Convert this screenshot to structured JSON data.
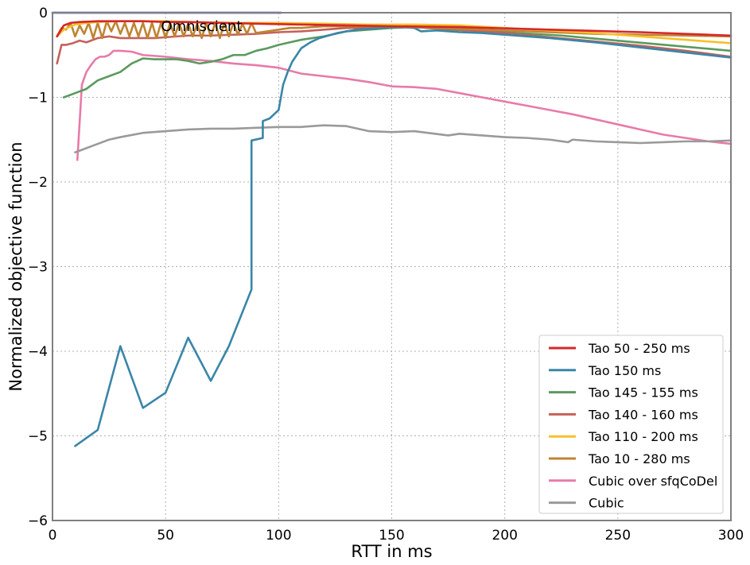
{
  "chart_data": {
    "type": "line",
    "title": "",
    "xlabel": "RTT in ms",
    "ylabel": "Normalized objective function",
    "xlim": [
      0,
      300
    ],
    "ylim": [
      -6,
      0
    ],
    "xticks": [
      0,
      50,
      100,
      150,
      200,
      250,
      300
    ],
    "yticks": [
      0,
      -1,
      -2,
      -3,
      -4,
      -5,
      -6
    ],
    "xtick_labels": [
      "0",
      "50",
      "100",
      "150",
      "200",
      "250",
      "300"
    ],
    "ytick_labels": [
      "0",
      "−1",
      "−2",
      "−3",
      "−4",
      "−5",
      "−6"
    ],
    "grid": true,
    "legend_position": "lower-right",
    "annotations": [
      {
        "text": "Omniscient",
        "x": 48,
        "y": -0.16
      }
    ],
    "reference_line": {
      "name": "Omniscient",
      "color": "#2020c8",
      "x": [
        0,
        101
      ],
      "y": [
        0,
        0
      ]
    },
    "series": [
      {
        "name": "Tao 50 - 250 ms",
        "color": "#d62728",
        "x": [
          2,
          5,
          8,
          12,
          20,
          30,
          40,
          50,
          60,
          75,
          90,
          110,
          130,
          150,
          180,
          220,
          260,
          300
        ],
        "y": [
          -0.28,
          -0.15,
          -0.12,
          -0.11,
          -0.1,
          -0.1,
          -0.1,
          -0.11,
          -0.11,
          -0.12,
          -0.13,
          -0.14,
          -0.15,
          -0.16,
          -0.17,
          -0.2,
          -0.23,
          -0.27
        ]
      },
      {
        "name": "Tao 150 ms",
        "color": "#3a86a8",
        "x": [
          10,
          20,
          30,
          40,
          50,
          60,
          70,
          78,
          88,
          88,
          93,
          93,
          96,
          100,
          101,
          102,
          104,
          106,
          108,
          110,
          114,
          118,
          122,
          126,
          130,
          135,
          140,
          145,
          150,
          155,
          160,
          163,
          170,
          180,
          190,
          200,
          220,
          240,
          260,
          280,
          300
        ],
        "y": [
          -5.12,
          -4.93,
          -3.94,
          -4.67,
          -4.49,
          -3.84,
          -4.35,
          -3.94,
          -3.27,
          -1.51,
          -1.48,
          -1.28,
          -1.25,
          -1.15,
          -1.0,
          -0.85,
          -0.7,
          -0.58,
          -0.5,
          -0.42,
          -0.35,
          -0.3,
          -0.27,
          -0.24,
          -0.22,
          -0.2,
          -0.19,
          -0.18,
          -0.17,
          -0.17,
          -0.18,
          -0.22,
          -0.21,
          -0.23,
          -0.24,
          -0.26,
          -0.3,
          -0.35,
          -0.41,
          -0.47,
          -0.53
        ]
      },
      {
        "name": "Tao 145 - 155 ms",
        "color": "#5a9a5e",
        "x": [
          5,
          10,
          15,
          20,
          25,
          30,
          35,
          40,
          45,
          50,
          55,
          60,
          65,
          70,
          75,
          80,
          85,
          90,
          95,
          100,
          105,
          110,
          115,
          120,
          125,
          130,
          140,
          150,
          160,
          175,
          200,
          225,
          250,
          275,
          300
        ],
        "y": [
          -1.0,
          -0.95,
          -0.9,
          -0.8,
          -0.75,
          -0.7,
          -0.6,
          -0.54,
          -0.55,
          -0.55,
          -0.55,
          -0.57,
          -0.6,
          -0.58,
          -0.55,
          -0.5,
          -0.5,
          -0.45,
          -0.42,
          -0.38,
          -0.35,
          -0.32,
          -0.3,
          -0.28,
          -0.25,
          -0.22,
          -0.2,
          -0.18,
          -0.17,
          -0.2,
          -0.23,
          -0.27,
          -0.33,
          -0.39,
          -0.45
        ]
      },
      {
        "name": "Tao 140 - 160 ms",
        "color": "#c4615a",
        "x": [
          2,
          4,
          6,
          9,
          12,
          15,
          20,
          25,
          30,
          35,
          40,
          45,
          50,
          60,
          70,
          80,
          90,
          100,
          110,
          120,
          130,
          140,
          150,
          160,
          180,
          200,
          220,
          240,
          260,
          280,
          300
        ],
        "y": [
          -0.6,
          -0.38,
          -0.38,
          -0.36,
          -0.33,
          -0.35,
          -0.3,
          -0.28,
          -0.3,
          -0.3,
          -0.3,
          -0.3,
          -0.29,
          -0.27,
          -0.27,
          -0.26,
          -0.25,
          -0.23,
          -0.22,
          -0.2,
          -0.18,
          -0.18,
          -0.17,
          -0.17,
          -0.2,
          -0.24,
          -0.29,
          -0.34,
          -0.39,
          -0.45,
          -0.52
        ]
      },
      {
        "name": "Tao 110 - 200 ms",
        "color": "#f7c02a",
        "x": [
          2,
          5,
          10,
          15,
          20,
          30,
          40,
          50,
          60,
          80,
          100,
          120,
          140,
          160,
          180,
          200,
          220,
          240,
          260,
          280,
          300
        ],
        "y": [
          -0.28,
          -0.2,
          -0.14,
          -0.12,
          -0.11,
          -0.1,
          -0.1,
          -0.1,
          -0.11,
          -0.12,
          -0.12,
          -0.13,
          -0.14,
          -0.14,
          -0.15,
          -0.18,
          -0.21,
          -0.24,
          -0.28,
          -0.32,
          -0.36
        ]
      },
      {
        "name": "Tao 10 - 280 ms",
        "color": "#bf8432",
        "x": [
          2,
          4,
          6,
          8,
          10,
          12,
          14,
          16,
          18,
          20,
          22,
          24,
          26,
          28,
          30,
          32,
          34,
          36,
          38,
          40,
          42,
          44,
          46,
          48,
          50,
          52,
          54,
          56,
          58,
          60,
          62,
          64,
          66,
          68,
          70,
          72,
          74,
          76,
          78,
          80,
          82,
          84,
          86,
          88,
          90,
          95,
          100,
          105,
          110,
          115,
          120,
          130,
          140,
          150,
          160,
          180,
          200,
          220,
          240,
          260,
          280,
          300
        ],
        "y": [
          -0.28,
          -0.18,
          -0.2,
          -0.12,
          -0.28,
          -0.15,
          -0.25,
          -0.12,
          -0.3,
          -0.12,
          -0.3,
          -0.1,
          -0.22,
          -0.1,
          -0.25,
          -0.12,
          -0.28,
          -0.12,
          -0.28,
          -0.12,
          -0.3,
          -0.12,
          -0.3,
          -0.12,
          -0.3,
          -0.12,
          -0.28,
          -0.12,
          -0.28,
          -0.13,
          -0.28,
          -0.13,
          -0.3,
          -0.12,
          -0.28,
          -0.12,
          -0.3,
          -0.12,
          -0.28,
          -0.12,
          -0.26,
          -0.13,
          -0.25,
          -0.12,
          -0.24,
          -0.22,
          -0.2,
          -0.18,
          -0.18,
          -0.17,
          -0.16,
          -0.16,
          -0.16,
          -0.16,
          -0.17,
          -0.19,
          -0.21,
          -0.23,
          -0.25,
          -0.26,
          -0.27,
          -0.28
        ]
      },
      {
        "name": "Cubic over sfqCoDel",
        "color": "#e87ba8",
        "x": [
          11,
          13,
          15,
          17,
          19,
          21,
          23,
          25,
          27,
          30,
          35,
          40,
          50,
          60,
          70,
          80,
          90,
          100,
          110,
          120,
          130,
          140,
          150,
          160,
          170,
          180,
          190,
          200,
          210,
          220,
          230,
          240,
          250,
          260,
          270,
          280,
          290,
          300
        ],
        "y": [
          -1.74,
          -0.85,
          -0.7,
          -0.62,
          -0.55,
          -0.52,
          -0.52,
          -0.5,
          -0.45,
          -0.45,
          -0.46,
          -0.5,
          -0.52,
          -0.55,
          -0.57,
          -0.6,
          -0.62,
          -0.65,
          -0.72,
          -0.75,
          -0.78,
          -0.82,
          -0.87,
          -0.88,
          -0.9,
          -0.95,
          -1.0,
          -1.05,
          -1.1,
          -1.15,
          -1.2,
          -1.26,
          -1.32,
          -1.38,
          -1.44,
          -1.48,
          -1.52,
          -1.55
        ]
      },
      {
        "name": "Cubic",
        "color": "#9a9a9a",
        "x": [
          10,
          20,
          25,
          30,
          40,
          50,
          60,
          70,
          80,
          90,
          100,
          110,
          120,
          130,
          140,
          150,
          160,
          175,
          180,
          190,
          200,
          210,
          220,
          228,
          230,
          240,
          250,
          260,
          270,
          280,
          290,
          300
        ],
        "y": [
          -1.65,
          -1.55,
          -1.5,
          -1.47,
          -1.42,
          -1.4,
          -1.38,
          -1.37,
          -1.37,
          -1.36,
          -1.35,
          -1.35,
          -1.33,
          -1.34,
          -1.4,
          -1.41,
          -1.4,
          -1.45,
          -1.43,
          -1.45,
          -1.47,
          -1.48,
          -1.5,
          -1.53,
          -1.5,
          -1.52,
          -1.53,
          -1.54,
          -1.53,
          -1.52,
          -1.52,
          -1.51
        ]
      }
    ]
  }
}
